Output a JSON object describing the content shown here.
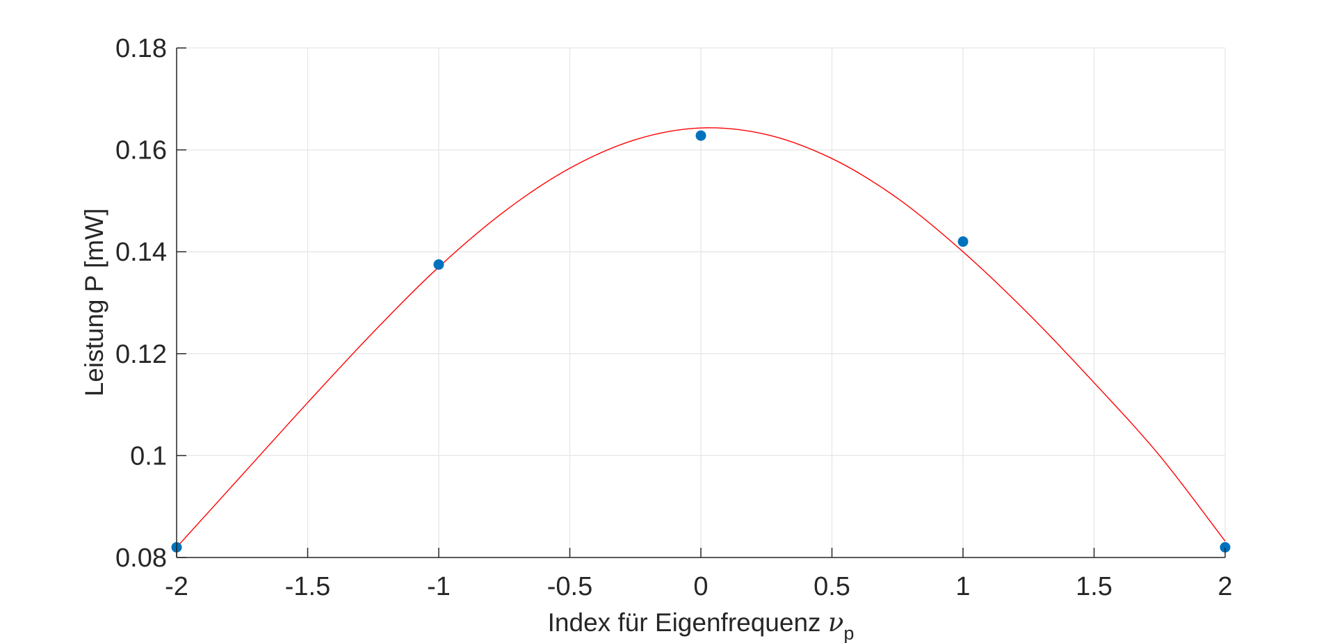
{
  "chart_data": {
    "type": "scatter",
    "title": "",
    "xlabel": "Index für Eigenfrequenz",
    "xlabel_symbol": "ν",
    "xlabel_subscript": "p",
    "ylabel": "Leistung P [mW]",
    "xlim": [
      -2,
      2
    ],
    "ylim": [
      0.08,
      0.18
    ],
    "xticks": [
      -2,
      -1.5,
      -1,
      -0.5,
      0,
      0.5,
      1,
      1.5,
      2
    ],
    "xtick_labels": [
      "-2",
      "-1.5",
      "-1",
      "-0.5",
      "0",
      "0.5",
      "1",
      "1.5",
      "2"
    ],
    "yticks": [
      0.08,
      0.1,
      0.12,
      0.14,
      0.16,
      0.18
    ],
    "ytick_labels": [
      "0.08",
      "0.1",
      "0.12",
      "0.14",
      "0.16",
      "0.18"
    ],
    "grid": true,
    "series": [
      {
        "kind": "points",
        "color": "#0072BD",
        "x": [
          -2,
          -1,
          0,
          1,
          2
        ],
        "y": [
          0.082,
          0.1375,
          0.1628,
          0.142,
          0.082
        ]
      },
      {
        "kind": "fit-curve",
        "color": "#FF0000",
        "x": [
          -2,
          -1.75,
          -1.5,
          -1.25,
          -1,
          -0.75,
          -0.5,
          -0.25,
          0,
          0.25,
          0.5,
          0.75,
          1,
          1.25,
          1.5,
          1.75,
          2
        ],
        "y": [
          0.082,
          0.0962,
          0.1104,
          0.1242,
          0.137,
          0.1479,
          0.1564,
          0.162,
          0.1643,
          0.163,
          0.1583,
          0.1505,
          0.14,
          0.1278,
          0.1143,
          0.1,
          0.0832
        ]
      }
    ]
  }
}
